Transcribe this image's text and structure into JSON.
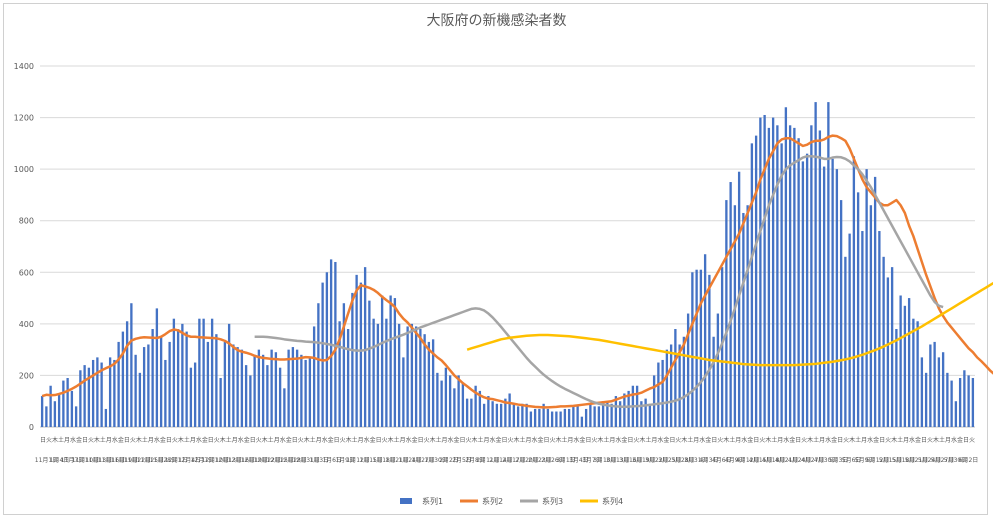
{
  "chart_data": {
    "type": "bar",
    "title": "大阪府の新機感染者数",
    "ylim": [
      0,
      1400
    ],
    "yticks": [
      0,
      200,
      400,
      600,
      800,
      1000,
      1200,
      1400
    ],
    "grid": true,
    "legend_position": "bottom",
    "series_colors": {
      "系列1": "#4472c4",
      "系列2": "#ed7d31",
      "系列3": "#a5a5a5",
      "系列4": "#ffc000"
    },
    "x_labels": [
      "日",
      "火",
      "木",
      "土",
      "月",
      "水",
      "金",
      "日",
      "火",
      "木",
      "土",
      "月",
      "水",
      "金",
      "日",
      "火",
      "木",
      "土",
      "月",
      "水",
      "金",
      "日",
      "火",
      "木",
      "土",
      "月",
      "水",
      "金",
      "日",
      "火",
      "木",
      "土",
      "月",
      "水",
      "金",
      "日",
      "火",
      "木",
      "土",
      "月",
      "水",
      "金",
      "日",
      "火",
      "木",
      "土",
      "月",
      "水",
      "金",
      "日",
      "火",
      "木",
      "土",
      "月",
      "水",
      "金",
      "日",
      "火",
      "木",
      "土",
      "月",
      "水",
      "金",
      "日",
      "火",
      "木",
      "土",
      "月",
      "水",
      "金",
      "日",
      "火",
      "木",
      "土",
      "月",
      "水",
      "金",
      "日",
      "火",
      "木",
      "土",
      "月",
      "水",
      "金",
      "日",
      "火",
      "木",
      "土",
      "月",
      "水",
      "金",
      "日",
      "火",
      "木",
      "土",
      "月",
      "水",
      "金",
      "日",
      "火",
      "木",
      "土",
      "月",
      "水",
      "金",
      "日",
      "火",
      "木",
      "土",
      "月",
      "水",
      "金",
      "日",
      "火",
      "木",
      "土",
      "月",
      "水",
      "金",
      "日",
      "火",
      "木",
      "土",
      "月",
      "水",
      "金",
      "日",
      "火",
      "木",
      "土",
      "月",
      "水",
      "金",
      "日",
      "火",
      "木",
      "土",
      "月",
      "水",
      "金",
      "日",
      "火",
      "木",
      "土",
      "月",
      "水",
      "金",
      "日",
      "火",
      "木",
      "土",
      "月",
      "水",
      "金",
      "日",
      "火"
    ],
    "date_labels": [
      "11月1日",
      "1月4日",
      "11月7日",
      "11月10日",
      "11月13日",
      "11月16日",
      "11月19日",
      "11月22日",
      "11月25日",
      "11月28日",
      "12月1日",
      "12月4日",
      "12月7日",
      "12月10日",
      "12月13日",
      "12月16日",
      "12月19日",
      "12月22日",
      "12月25日",
      "12月28日",
      "12月31日",
      "1月3日",
      "1月6日",
      "1月9日",
      "1月12日",
      "1月15日",
      "1月18日",
      "1月21日",
      "1月24日",
      "1月27日",
      "1月30日",
      "2月2日",
      "2月5日",
      "2月8日",
      "2月11日",
      "2月14日",
      "2月17日",
      "2月20日",
      "2月23日",
      "2月26日",
      "3月1日",
      "3月4日",
      "3月7日",
      "3月10日",
      "3月13日",
      "3月16日",
      "3月19日",
      "3月22日",
      "3月25日",
      "3月28日",
      "3月31日",
      "4月3日",
      "4月6日",
      "4月9日",
      "4月12日",
      "4月15日",
      "4月18日",
      "4月21日",
      "4月24日",
      "4月27日",
      "4月30日",
      "5月3日",
      "5月6日",
      "5月9日",
      "5月12日",
      "5月15日",
      "5月18日",
      "5月21日",
      "5月24日",
      "5月27日",
      "5月30日",
      "6月2日"
    ],
    "series": [
      {
        "name": "系列1",
        "type": "bar",
        "values": [
          120,
          80,
          160,
          100,
          130,
          180,
          190,
          140,
          80,
          220,
          240,
          230,
          260,
          270,
          250,
          70,
          270,
          260,
          330,
          370,
          410,
          480,
          280,
          210,
          310,
          320,
          380,
          460,
          350,
          260,
          330,
          420,
          380,
          400,
          370,
          230,
          250,
          420,
          420,
          330,
          420,
          360,
          190,
          330,
          400,
          320,
          310,
          300,
          240,
          200,
          280,
          300,
          280,
          240,
          300,
          290,
          230,
          150,
          300,
          310,
          300,
          280,
          260,
          270,
          390,
          480,
          560,
          600,
          650,
          640,
          410,
          480,
          380,
          520,
          590,
          560,
          620,
          490,
          420,
          400,
          510,
          420,
          510,
          500,
          400,
          270,
          390,
          400,
          390,
          380,
          360,
          330,
          340,
          210,
          180,
          230,
          200,
          150,
          200,
          170,
          110,
          110,
          160,
          140,
          90,
          120,
          100,
          90,
          90,
          110,
          130,
          90,
          80,
          90,
          90,
          60,
          70,
          70,
          90,
          70,
          60,
          60,
          60,
          70,
          70,
          80,
          80,
          40,
          70,
          90,
          80,
          80,
          100,
          100,
          90,
          120,
          100,
          130,
          140,
          160,
          160,
          100,
          110,
          90,
          200,
          250,
          260,
          300,
          320,
          380,
          320,
          350,
          440,
          600,
          610,
          610,
          670,
          590,
          350,
          440,
          620,
          880,
          950,
          860,
          990,
          830,
          860,
          1100,
          1130,
          1200,
          1210,
          1160,
          1200,
          1170,
          1100,
          1240,
          1170,
          1160,
          1120,
          1030,
          1060,
          1170,
          1260,
          1150,
          1010,
          1260,
          1040,
          1000,
          880,
          660,
          750,
          1050,
          910,
          760,
          1000,
          860,
          970,
          760,
          660,
          580,
          620,
          380,
          510,
          470,
          500,
          420,
          410,
          270,
          210,
          320,
          330,
          270,
          290,
          210,
          180,
          100,
          190,
          220,
          200,
          190
        ]
      },
      {
        "name": "系列2",
        "type": "line",
        "values": [
          120,
          125,
          123,
          124,
          128,
          133,
          140,
          148,
          157,
          168,
          180,
          190,
          200,
          210,
          220,
          228,
          235,
          245,
          262,
          285,
          315,
          335,
          342,
          346,
          348,
          347,
          346,
          345,
          350,
          360,
          372,
          378,
          375,
          365,
          355,
          350,
          350,
          348,
          347,
          346,
          345,
          344,
          340,
          334,
          324,
          310,
          298,
          292,
          288,
          283,
          276,
          271,
          268,
          266,
          264,
          263,
          262,
          262,
          263,
          264,
          265,
          268,
          271,
          270,
          268,
          262,
          258,
          260,
          275,
          300,
          340,
          390,
          440,
          490,
          530,
          550,
          545,
          540,
          532,
          520,
          505,
          492,
          480,
          465,
          440,
          420,
          405,
          385,
          365,
          345,
          320,
          300,
          285,
          270,
          258,
          240,
          220,
          200,
          185,
          170,
          158,
          145,
          133,
          123,
          115,
          110,
          108,
          104,
          100,
          95,
          93,
          90,
          87,
          85,
          82,
          80,
          78,
          77,
          76,
          76,
          77,
          78,
          80,
          80,
          81,
          82,
          84,
          86,
          88,
          90,
          92,
          94,
          96,
          98,
          100,
          106,
          112,
          118,
          122,
          126,
          128,
          133,
          141,
          149,
          155,
          165,
          175,
          200,
          230,
          260,
          290,
          320,
          360,
          400,
          440,
          480,
          510,
          540,
          570,
          600,
          630,
          660,
          690,
          720,
          750,
          790,
          830,
          870,
          910,
          960,
          1000,
          1040,
          1070,
          1100,
          1115,
          1120,
          1120,
          1110,
          1100,
          1090,
          1095,
          1105,
          1110,
          1110,
          1115,
          1125,
          1130,
          1128,
          1120,
          1110,
          1080,
          1040,
          1000,
          960,
          930,
          910,
          890,
          870,
          860,
          860,
          870,
          880,
          860,
          830,
          780,
          740,
          690,
          640,
          590,
          545,
          500,
          460,
          430,
          405,
          385,
          365,
          345,
          325,
          305,
          290,
          270,
          255,
          238,
          220,
          205,
          195
        ]
      },
      {
        "name": "系列3",
        "type": "line",
        "values": [
          null,
          null,
          null,
          null,
          null,
          null,
          null,
          null,
          null,
          null,
          null,
          null,
          null,
          null,
          null,
          null,
          null,
          null,
          null,
          null,
          null,
          null,
          null,
          null,
          null,
          null,
          null,
          null,
          null,
          null,
          null,
          null,
          null,
          null,
          null,
          null,
          null,
          null,
          null,
          null,
          null,
          null,
          null,
          null,
          null,
          null,
          null,
          null,
          null,
          null,
          350,
          350,
          350,
          349,
          347,
          345,
          343,
          340,
          338,
          336,
          334,
          333,
          331,
          330,
          329,
          327,
          325,
          322,
          319,
          315,
          311,
          306,
          302,
          298,
          296,
          296,
          298,
          304,
          310,
          318,
          326,
          333,
          340,
          346,
          352,
          358,
          365,
          372,
          379,
          386,
          392,
          398,
          404,
          410,
          416,
          422,
          428,
          434,
          440,
          446,
          452,
          458,
          460,
          458,
          452,
          440,
          425,
          407,
          388,
          368,
          348,
          328,
          308,
          288,
          268,
          250,
          234,
          218,
          203,
          190,
          178,
          167,
          157,
          148,
          140,
          132,
          124,
          116,
          108,
          101,
          95,
          90,
          87,
          84,
          82,
          80,
          79,
          78,
          79,
          80,
          81,
          82,
          84,
          86,
          88,
          90,
          92,
          95,
          98,
          102,
          108,
          116,
          127,
          140,
          156,
          174,
          196,
          222,
          252,
          286,
          324,
          366,
          412,
          460,
          510,
          560,
          610,
          660,
          710,
          760,
          810,
          860,
          900,
          940,
          975,
          1000,
          1015,
          1025,
          1035,
          1045,
          1050,
          1050,
          1048,
          1045,
          1040,
          1040,
          1045,
          1047,
          1046,
          1040,
          1030,
          1015,
          1000,
          980,
          955,
          930,
          900,
          870,
          840,
          810,
          780,
          750,
          720,
          690,
          660,
          630,
          600,
          570,
          540,
          510,
          485,
          470,
          465
        ]
      },
      {
        "name": "系列4",
        "type": "line",
        "values": [
          null,
          null,
          null,
          null,
          null,
          null,
          null,
          null,
          null,
          null,
          null,
          null,
          null,
          null,
          null,
          null,
          null,
          null,
          null,
          null,
          null,
          null,
          null,
          null,
          null,
          null,
          null,
          null,
          null,
          null,
          null,
          null,
          null,
          null,
          null,
          null,
          null,
          null,
          null,
          null,
          null,
          null,
          null,
          null,
          null,
          null,
          null,
          null,
          null,
          null,
          null,
          null,
          null,
          null,
          null,
          null,
          null,
          null,
          null,
          null,
          null,
          null,
          null,
          null,
          null,
          null,
          null,
          null,
          null,
          null,
          null,
          null,
          null,
          null,
          null,
          null,
          null,
          null,
          null,
          null,
          null,
          null,
          null,
          null,
          null,
          null,
          null,
          null,
          null,
          null,
          null,
          null,
          null,
          null,
          null,
          null,
          null,
          null,
          null,
          null,
          300,
          305,
          310,
          315,
          320,
          325,
          330,
          335,
          340,
          343,
          346,
          348,
          350,
          352,
          354,
          355,
          356,
          357,
          357,
          357,
          356,
          355,
          354,
          353,
          352,
          350,
          348,
          346,
          344,
          342,
          340,
          338,
          335,
          332,
          329,
          326,
          323,
          320,
          317,
          314,
          311,
          308,
          305,
          302,
          299,
          296,
          293,
          290,
          287,
          284,
          281,
          278,
          275,
          272,
          269,
          266,
          263,
          260,
          258,
          256,
          254,
          252,
          250,
          248,
          246,
          244,
          243,
          242,
          241,
          240,
          240,
          240,
          240,
          240,
          240,
          240,
          240,
          240,
          241,
          242,
          243,
          244,
          245,
          247,
          249,
          251,
          253,
          256,
          259,
          262,
          266,
          270,
          275,
          280,
          286,
          292,
          298,
          305,
          312,
          320,
          328,
          336,
          345,
          354,
          363,
          372,
          381,
          390,
          400,
          410,
          420,
          430,
          440,
          450,
          460,
          470,
          480,
          490,
          500,
          510,
          520,
          530,
          540,
          550,
          560,
          568,
          576,
          583,
          590,
          596,
          602,
          606,
          610,
          614,
          617,
          620,
          622,
          624,
          626,
          628
        ]
      }
    ]
  }
}
